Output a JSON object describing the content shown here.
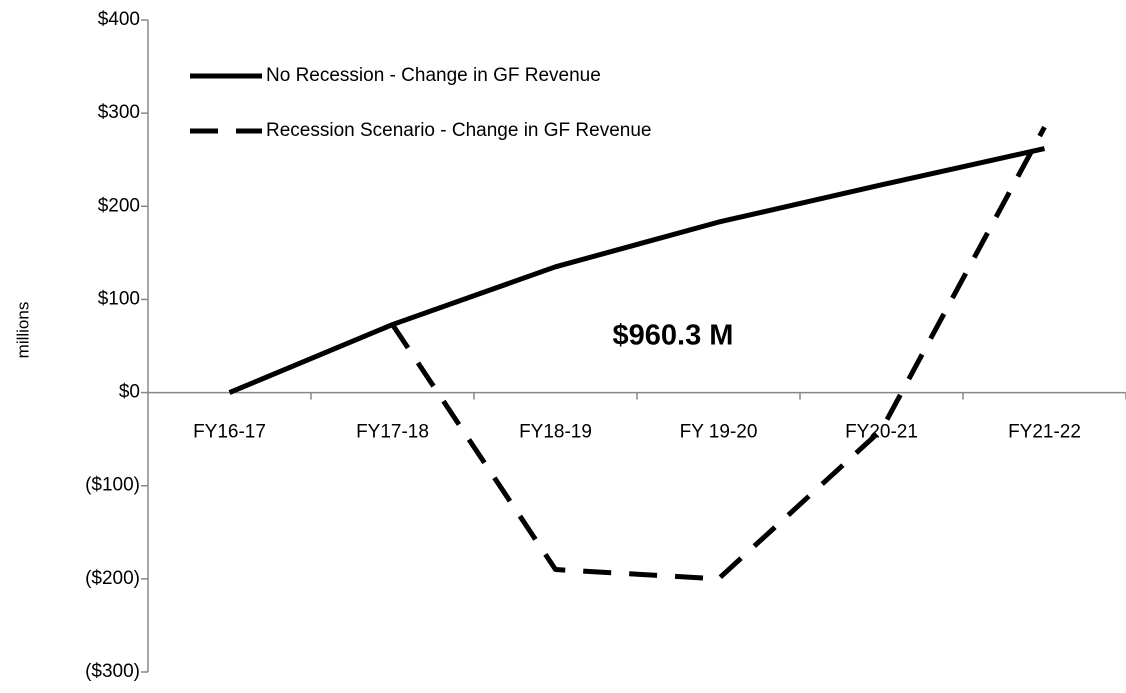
{
  "chart_data": {
    "type": "line",
    "y_axis_label": "millions",
    "annotation": "$960.3 M",
    "categories": [
      "FY16-17",
      "FY17-18",
      "FY18-19",
      "FY 19-20",
      "FY20-21",
      "FY21-22"
    ],
    "series": [
      {
        "name": "No Recession - Change in GF Revenue",
        "color": "#000000",
        "dash": false,
        "values": [
          0,
          73,
          135,
          183,
          223,
          262
        ]
      },
      {
        "name": "Recession Scenario - Change in GF Revenue",
        "color": "#000000",
        "dash": true,
        "values": [
          null,
          73,
          -190,
          -200,
          -40,
          285
        ]
      }
    ],
    "ylim": [
      -300,
      400
    ],
    "yticks": [
      {
        "value": -300,
        "label": "($300)"
      },
      {
        "value": -200,
        "label": "($200)"
      },
      {
        "value": -100,
        "label": "($100)"
      },
      {
        "value": 0,
        "label": "$0"
      },
      {
        "value": 100,
        "label": "$100"
      },
      {
        "value": 200,
        "label": "$200"
      },
      {
        "value": 300,
        "label": "$300"
      },
      {
        "value": 400,
        "label": "$400"
      }
    ],
    "grid": false,
    "legend": "top-left"
  }
}
